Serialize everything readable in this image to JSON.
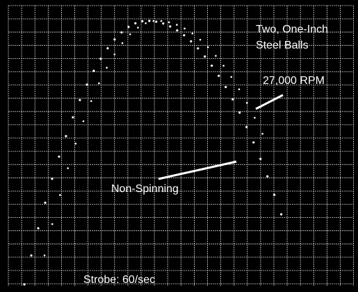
{
  "caption": {
    "line1": "Two, One-Inch",
    "line2": "Steel Balls"
  },
  "labels": {
    "spinning": "27,000 RPM",
    "non_spinning": "Non-Spinning",
    "strobe": "Strobe: 60/sec"
  }
}
